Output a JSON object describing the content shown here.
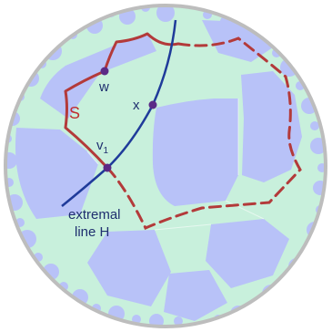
{
  "labels": {
    "w": "w",
    "x": "x",
    "s": "S",
    "v_main": "v",
    "v_sub": "1",
    "line_h_1": "extremal",
    "line_h_2": "line H"
  },
  "colors": {
    "disk_background": "#c8f0dc",
    "tile_blue": "#b8c2f8",
    "disk_rim": "#bdbdbd",
    "path_s": "#b33a3a",
    "line_h": "#1f3b9a",
    "point": "#5b2a86",
    "label_text": "#1f2f6f",
    "s_label": "#c03030"
  }
}
